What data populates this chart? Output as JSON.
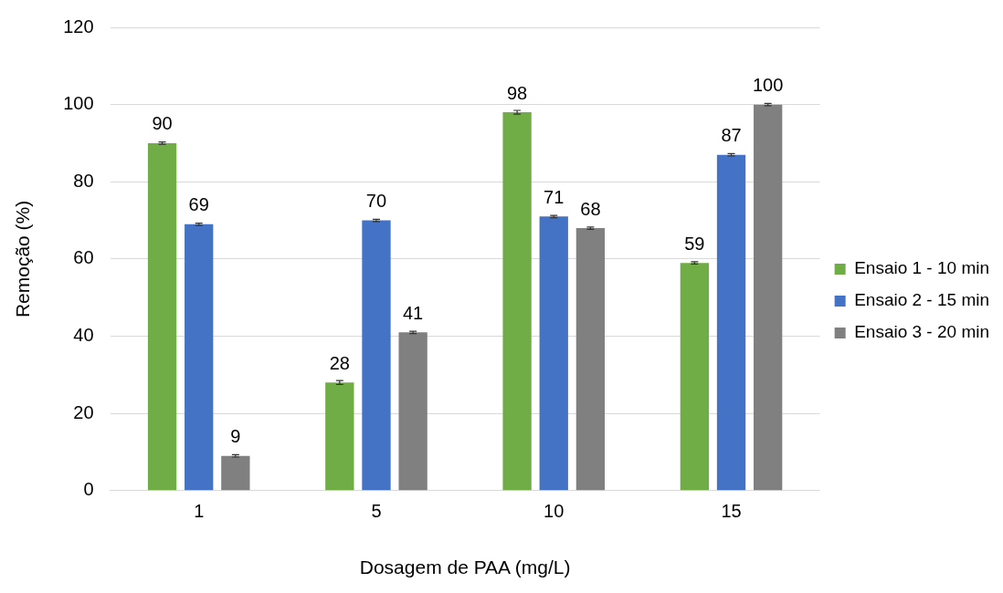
{
  "chart_data": {
    "type": "bar",
    "xlabel": "Dosagem de PAA (mg/L)",
    "ylabel": "Remoção (%)",
    "categories": [
      "1",
      "5",
      "10",
      "15"
    ],
    "series": [
      {
        "name": "Ensaio 1 - 10 min",
        "color": "#70ad47",
        "values": [
          90,
          28,
          98,
          59
        ],
        "errors": [
          0.3,
          0.5,
          0.5,
          0.3
        ]
      },
      {
        "name": "Ensaio 2 - 15 min",
        "color": "#4472c4",
        "values": [
          69,
          70,
          71,
          87
        ],
        "errors": [
          0.3,
          0.3,
          0.3,
          0.3
        ]
      },
      {
        "name": "Ensaio 3 - 20 min",
        "color": "#808080",
        "values": [
          9,
          41,
          68,
          100
        ],
        "errors": [
          0.3,
          0.3,
          0.3,
          0.3
        ]
      }
    ],
    "ylim": [
      0,
      120
    ],
    "yticks": [
      0,
      20,
      40,
      60,
      80,
      100,
      120
    ],
    "grid": "y",
    "legend": "right",
    "data_labels": true
  }
}
